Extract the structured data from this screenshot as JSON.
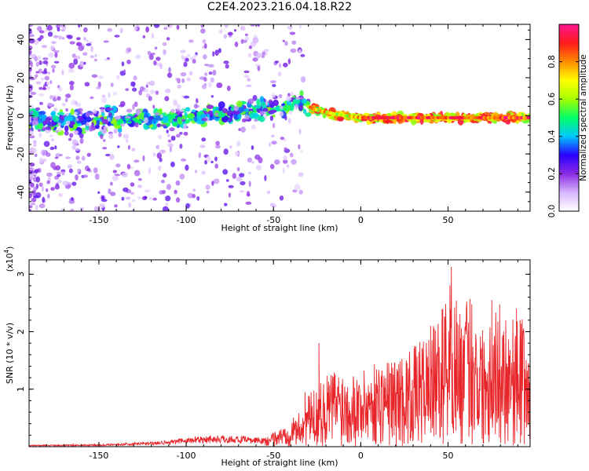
{
  "title": "C2E4.2023.216.04.18.R22",
  "chart_data": [
    {
      "type": "heatmap",
      "name": "spectrogram",
      "xlabel": "Height of straight line (km)",
      "ylabel": "Frequency (Hz)",
      "xlim": [
        -190,
        97
      ],
      "ylim": [
        -50,
        48
      ],
      "xticks": [
        -150,
        -100,
        -50,
        0,
        50
      ],
      "yticks": [
        -40,
        -20,
        0,
        20,
        40
      ],
      "colorbar": {
        "label": "Normalized spectral amplitude",
        "range": [
          0,
          1
        ],
        "ticks": [
          0.0,
          0.2,
          0.4,
          0.6,
          0.8
        ],
        "tick_labels": [
          "0.0",
          "0.2",
          "0.4",
          "0.6",
          "0.8"
        ],
        "colors": [
          "#ffffff",
          "#d8b6ff",
          "#8a2be2",
          "#2a00ff",
          "#00c8ff",
          "#00ff66",
          "#a6ff00",
          "#ffff00",
          "#ff8c00",
          "#ff1a1a",
          "#ff1493"
        ]
      },
      "ridge": [
        {
          "x": -190,
          "y": -3
        },
        {
          "x": -150,
          "y": -2
        },
        {
          "x": -120,
          "y": -2
        },
        {
          "x": -100,
          "y": -1
        },
        {
          "x": -80,
          "y": 1
        },
        {
          "x": -60,
          "y": 3
        },
        {
          "x": -45,
          "y": 4
        },
        {
          "x": -35,
          "y": 7
        },
        {
          "x": -25,
          "y": 3
        },
        {
          "x": -15,
          "y": 1
        },
        {
          "x": 0,
          "y": -1
        },
        {
          "x": 20,
          "y": -1
        },
        {
          "x": 50,
          "y": -1
        },
        {
          "x": 97,
          "y": -1
        }
      ]
    },
    {
      "type": "line",
      "name": "snr",
      "xlabel": "Height of straight line (km)",
      "ylabel": "SNR (10 * v/v)",
      "y_multiplier": "(x10",
      "y_exponent": "4",
      "y_multiplier_close": ")",
      "xlim": [
        -190,
        97
      ],
      "ylim": [
        0,
        3.25
      ],
      "xticks": [
        -150,
        -100,
        -50,
        0,
        50
      ],
      "yticks": [
        1,
        2,
        3
      ],
      "color": "#e8262a",
      "envelope": [
        {
          "x": -190,
          "y": 0.03
        },
        {
          "x": -150,
          "y": 0.04
        },
        {
          "x": -130,
          "y": 0.07
        },
        {
          "x": -110,
          "y": 0.12
        },
        {
          "x": -90,
          "y": 0.2
        },
        {
          "x": -75,
          "y": 0.2
        },
        {
          "x": -55,
          "y": 0.15
        },
        {
          "x": -45,
          "y": 0.35
        },
        {
          "x": -35,
          "y": 0.6
        },
        {
          "x": -30,
          "y": 0.9
        },
        {
          "x": -25,
          "y": 1.05
        },
        {
          "x": -15,
          "y": 1.4
        },
        {
          "x": 0,
          "y": 1.3
        },
        {
          "x": 10,
          "y": 1.5
        },
        {
          "x": 20,
          "y": 1.55
        },
        {
          "x": 30,
          "y": 1.7
        },
        {
          "x": 40,
          "y": 2.05
        },
        {
          "x": 45,
          "y": 2.2
        },
        {
          "x": 52,
          "y": 3.25
        },
        {
          "x": 57,
          "y": 2.3
        },
        {
          "x": 63,
          "y": 2.75
        },
        {
          "x": 70,
          "y": 2.1
        },
        {
          "x": 75,
          "y": 2.4
        },
        {
          "x": 80,
          "y": 2.5
        },
        {
          "x": 87,
          "y": 2.3
        },
        {
          "x": 92,
          "y": 2.4
        },
        {
          "x": 97,
          "y": 1.4
        }
      ],
      "spikes": [
        {
          "x": -32,
          "y": 0.95
        },
        {
          "x": -24,
          "y": 1.8
        },
        {
          "x": 31,
          "y": 1.75
        },
        {
          "x": 40,
          "y": 2.1
        },
        {
          "x": 52,
          "y": 3.25
        },
        {
          "x": 63,
          "y": 2.75
        },
        {
          "x": 75,
          "y": 2.55
        },
        {
          "x": 89,
          "y": 2.4
        }
      ]
    }
  ]
}
